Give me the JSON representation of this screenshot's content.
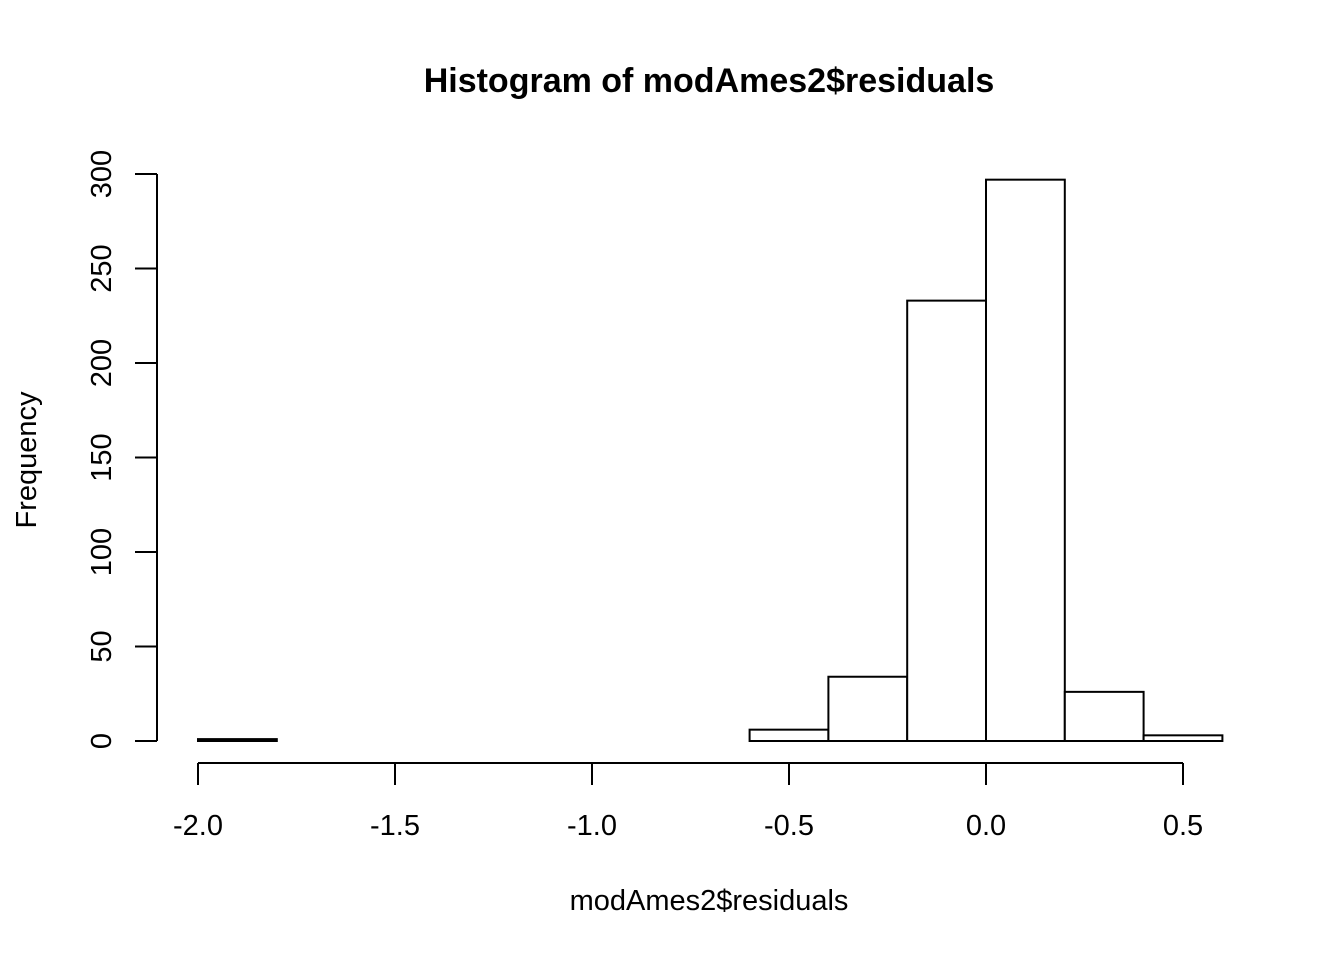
{
  "chart_data": {
    "type": "bar",
    "title": "Histogram of modAmes2$residuals",
    "xlabel": "modAmes2$residuals",
    "ylabel": "Frequency",
    "bin_edges": [
      -2.0,
      -1.8,
      -1.6,
      -1.4,
      -1.2,
      -1.0,
      -0.8,
      -0.6,
      -0.4,
      -0.2,
      0.0,
      0.2,
      0.4,
      0.6
    ],
    "values": [
      1,
      0,
      0,
      0,
      0,
      0,
      0,
      6,
      34,
      233,
      297,
      26,
      3
    ],
    "xlim": [
      -2.0,
      0.6
    ],
    "ylim": [
      0,
      300
    ],
    "x_ticks": [
      -2.0,
      -1.5,
      -1.0,
      -0.5,
      0.0,
      0.5
    ],
    "x_tick_labels": [
      "-2.0",
      "-1.5",
      "-1.0",
      "-0.5",
      "0.0",
      "0.5"
    ],
    "y_ticks": [
      0,
      50,
      100,
      150,
      200,
      250,
      300
    ],
    "y_tick_labels": [
      "0",
      "50",
      "100",
      "150",
      "200",
      "250",
      "300"
    ],
    "grid": false,
    "colors": {
      "bar_fill": "#ffffff",
      "bar_stroke": "#000000",
      "background": "#ffffff"
    }
  }
}
